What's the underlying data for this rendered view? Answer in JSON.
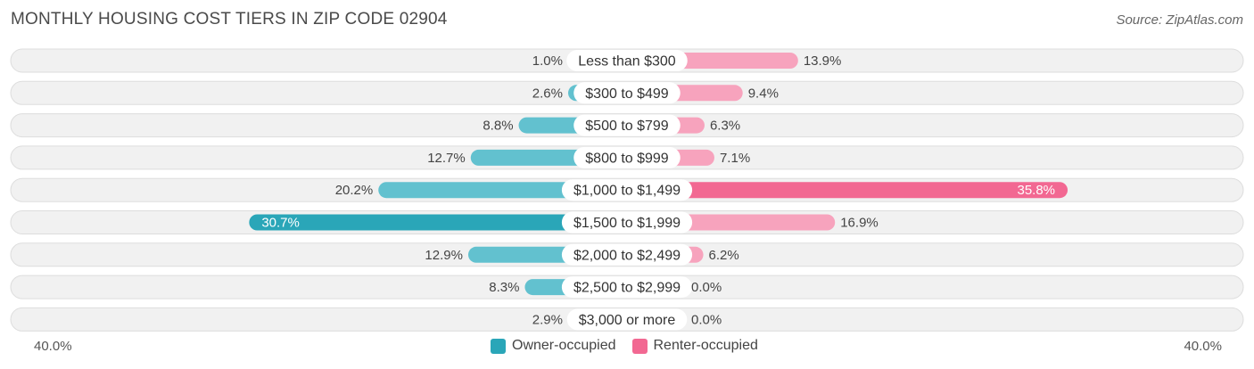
{
  "title": "MONTHLY HOUSING COST TIERS IN ZIP CODE 02904",
  "source": "Source: ZipAtlas.com",
  "colors": {
    "owner": "#62c1cf",
    "owner_strong": "#2aa6b8",
    "renter": "#f7a3bd",
    "renter_strong": "#f26892",
    "row_bg": "#f1f1f1",
    "row_border": "#dddddd"
  },
  "legend": {
    "owner_label": "Owner-occupied",
    "renter_label": "Renter-occupied"
  },
  "axis": {
    "left_label": "40.0%",
    "right_label": "40.0%"
  },
  "chart_data": {
    "type": "bar",
    "orientation": "diverging-horizontal",
    "title": "MONTHLY HOUSING COST TIERS IN ZIP CODE 02904",
    "xlim": [
      -40,
      40
    ],
    "categories": [
      "Less than $300",
      "$300 to $499",
      "$500 to $799",
      "$800 to $999",
      "$1,000 to $1,499",
      "$1,500 to $1,999",
      "$2,000 to $2,499",
      "$2,500 to $2,999",
      "$3,000 or more"
    ],
    "series": [
      {
        "name": "Owner-occupied",
        "values": [
          1.0,
          2.6,
          8.8,
          12.7,
          20.2,
          30.7,
          12.9,
          8.3,
          2.9
        ],
        "labels": [
          "1.0%",
          "2.6%",
          "8.8%",
          "12.7%",
          "20.2%",
          "30.7%",
          "12.9%",
          "8.3%",
          "2.9%"
        ]
      },
      {
        "name": "Renter-occupied",
        "values": [
          13.9,
          9.4,
          6.3,
          7.1,
          35.8,
          16.9,
          6.2,
          0.0,
          0.0
        ],
        "labels": [
          "13.9%",
          "9.4%",
          "6.3%",
          "7.1%",
          "35.8%",
          "16.9%",
          "6.2%",
          "0.0%",
          "0.0%"
        ]
      }
    ],
    "legend_position": "bottom-center"
  }
}
